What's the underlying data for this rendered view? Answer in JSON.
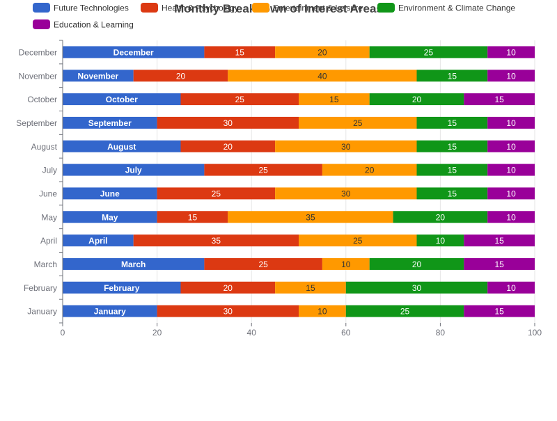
{
  "chart_data": {
    "type": "bar",
    "orientation": "horizontal",
    "stacked": true,
    "title": "Monthly Breakdown of Interest Areas",
    "categories": [
      "January",
      "February",
      "March",
      "April",
      "May",
      "June",
      "July",
      "August",
      "September",
      "October",
      "November",
      "December"
    ],
    "series": [
      {
        "name": "Future Technologies",
        "color": "#3366cc",
        "values": [
          20,
          25,
          30,
          15,
          20,
          20,
          30,
          25,
          20,
          25,
          15,
          30
        ]
      },
      {
        "name": "Health & Psychology",
        "color": "#dc3912",
        "values": [
          30,
          20,
          25,
          35,
          15,
          25,
          25,
          20,
          30,
          25,
          20,
          15
        ]
      },
      {
        "name": "Entertainment & Leisure",
        "color": "#ff9900",
        "values": [
          10,
          15,
          10,
          25,
          35,
          30,
          20,
          30,
          25,
          15,
          40,
          20
        ]
      },
      {
        "name": "Environment & Climate Change",
        "color": "#109618",
        "values": [
          25,
          30,
          20,
          10,
          20,
          15,
          15,
          15,
          15,
          20,
          15,
          25
        ]
      },
      {
        "name": "Education & Learning",
        "color": "#990099",
        "values": [
          15,
          10,
          15,
          15,
          10,
          10,
          10,
          10,
          10,
          15,
          10,
          10
        ]
      }
    ],
    "xlim": [
      0,
      100
    ],
    "xticks": [
      0,
      20,
      40,
      60,
      80,
      100
    ],
    "grid": true,
    "legend_position": "top-left",
    "first_series_label": "category"
  }
}
